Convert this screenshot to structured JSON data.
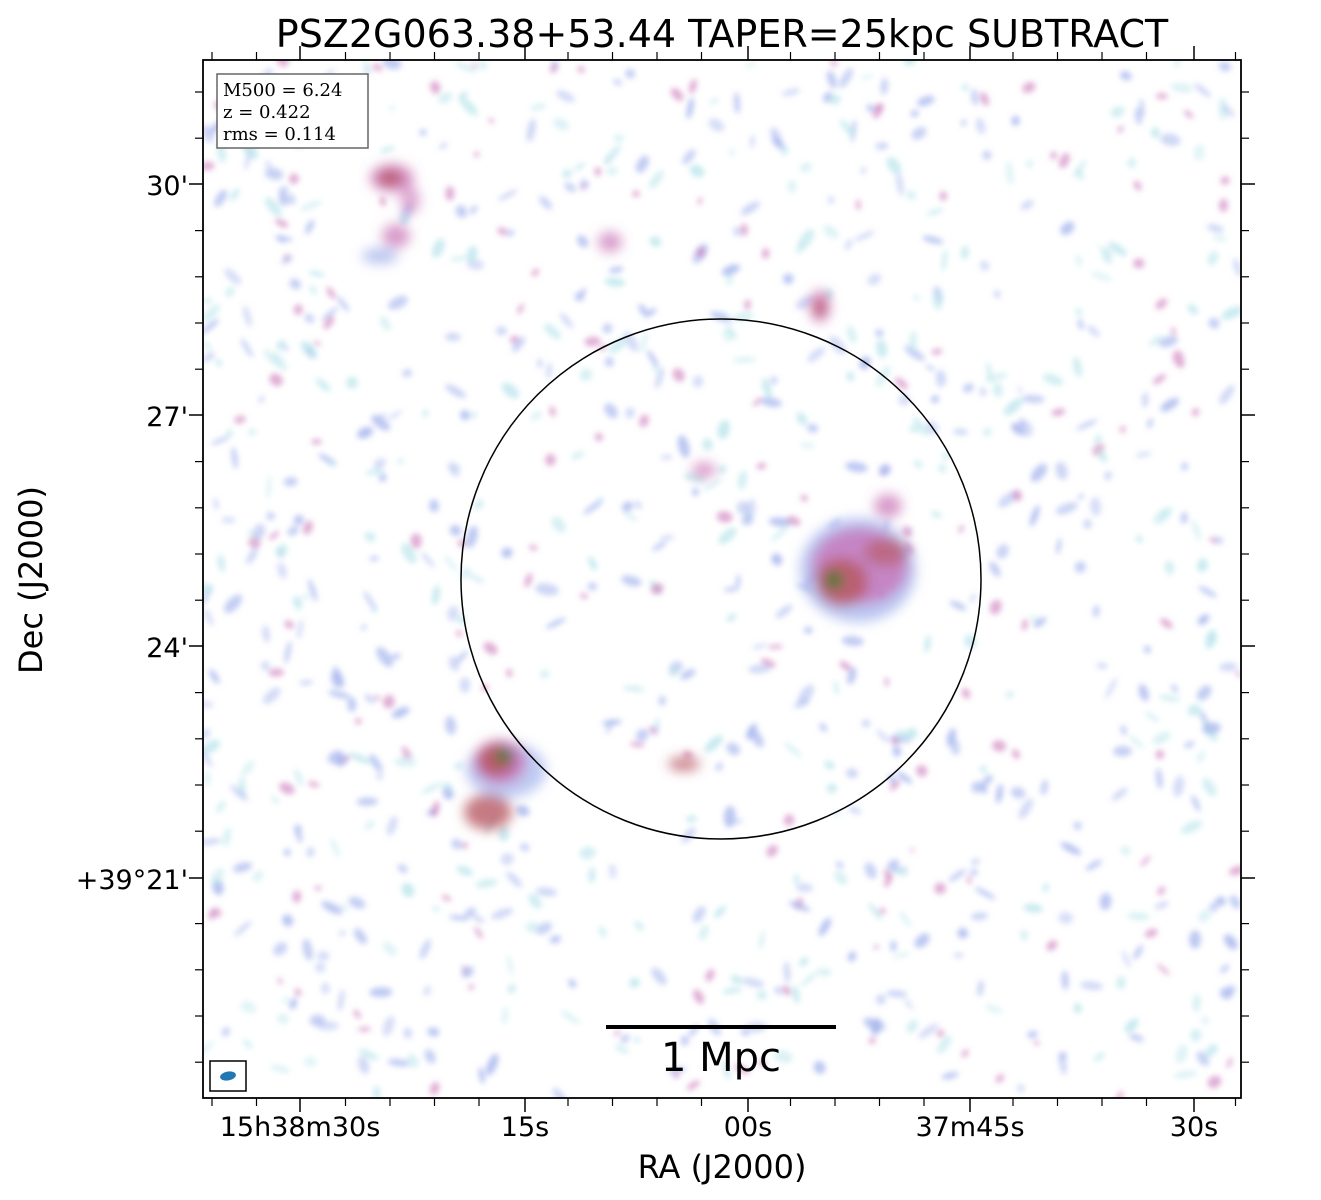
{
  "figure": {
    "title": "PSZ2G063.38+53.44 TAPER=25kpc SUBTRACT",
    "xlabel": "RA (J2000)",
    "ylabel": "Dec (J2000)",
    "x_ticks": [
      "15h38m30s",
      "15s",
      "00s",
      "37m45s",
      "30s"
    ],
    "y_ticks": [
      "30'",
      "27'",
      "24'",
      "+39°21'"
    ],
    "info_box": {
      "line1": "M500 = 6.24",
      "line2": "z = 0.422",
      "line3": "rms = 0.114"
    },
    "scale_bar_label": "1 Mpc",
    "colors": {
      "faint_emission": "#a9b8ee",
      "cyan_noise": "#bde6ec",
      "mid_emission": "#c86fb4",
      "bright_emission": "#b85a64",
      "peak_emission": "#2f7a22",
      "beam": "#1f77b4"
    }
  }
}
